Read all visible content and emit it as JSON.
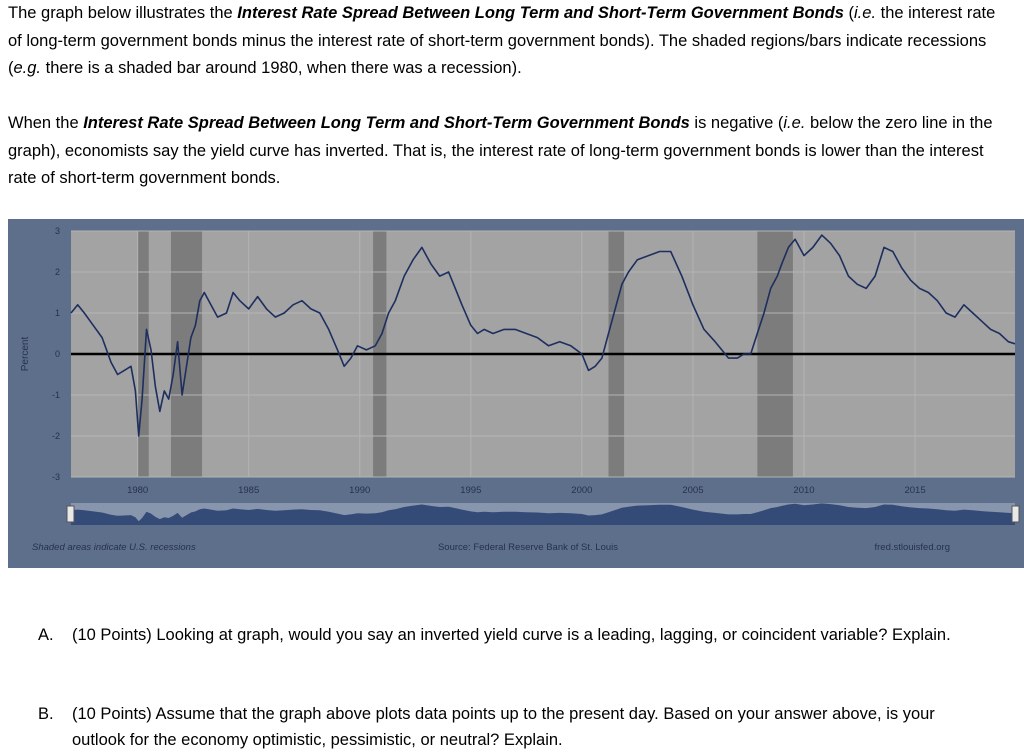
{
  "intro": {
    "p1_a": "The graph below illustrates the ",
    "p1_b": "Interest Rate Spread Between Long Term and Short-Term Government Bonds",
    "p1_c": " (",
    "p1_d": "i.e.",
    "p1_e": " the interest rate of long-term government bonds minus the interest rate of short-term government bonds).  The shaded regions/bars indicate recessions (",
    "p1_f": "e.g.",
    "p1_g": " there is a shaded bar around 1980, when there was a recession).",
    "p2_a": "When the ",
    "p2_b": "Interest Rate Spread Between Long Term and Short-Term Government Bonds",
    "p2_c": " is negative (",
    "p2_d": "i.e.",
    "p2_e": " below the zero line in the graph), economists say the yield curve has inverted. That is, the interest rate of long-term government bonds is lower than the interest rate of short-term government bonds."
  },
  "chart_data": {
    "type": "line",
    "ylabel": "Percent",
    "ylim": [
      -3,
      3
    ],
    "yticks": [
      "3",
      "2",
      "1",
      "0",
      "-1",
      "-2",
      "-3"
    ],
    "xlim": [
      1977.0,
      2019.5
    ],
    "xticks": [
      "1980",
      "1985",
      "1990",
      "1995",
      "2000",
      "2005",
      "2010",
      "2015"
    ],
    "recessions": [
      [
        1980.0,
        1980.5
      ],
      [
        1981.5,
        1982.9
      ],
      [
        1990.6,
        1991.2
      ],
      [
        2001.2,
        2001.9
      ],
      [
        2007.9,
        2009.5
      ]
    ],
    "series": [
      {
        "x": [
          1977.0,
          1977.3,
          1977.6,
          1978.0,
          1978.4,
          1978.8,
          1979.1,
          1979.4,
          1979.7,
          1979.9,
          1980.05,
          1980.2,
          1980.4,
          1980.6,
          1980.8,
          1981.0,
          1981.2,
          1981.4,
          1981.6,
          1981.8,
          1982.0,
          1982.2,
          1982.4,
          1982.6,
          1982.8,
          1983.0,
          1983.3,
          1983.6,
          1984.0,
          1984.3,
          1984.6,
          1985.0,
          1985.4,
          1985.8,
          1986.2,
          1986.6,
          1987.0,
          1987.4,
          1987.8,
          1988.2,
          1988.6,
          1989.0,
          1989.3,
          1989.6,
          1989.9,
          1990.3,
          1990.7,
          1991.0,
          1991.3,
          1991.6,
          1992.0,
          1992.4,
          1992.8,
          1993.2,
          1993.6,
          1994.0,
          1994.3,
          1994.6,
          1995.0,
          1995.3,
          1995.6,
          1996.0,
          1996.5,
          1997.0,
          1997.5,
          1998.0,
          1998.5,
          1999.0,
          1999.5,
          2000.0,
          2000.3,
          2000.6,
          2000.9,
          2001.2,
          2001.5,
          2001.8,
          2002.1,
          2002.5,
          2003.0,
          2003.5,
          2004.0,
          2004.5,
          2005.0,
          2005.5,
          2006.0,
          2006.3,
          2006.6,
          2007.0,
          2007.3,
          2007.6,
          2007.9,
          2008.2,
          2008.5,
          2008.8,
          2009.0,
          2009.3,
          2009.6,
          2010.0,
          2010.4,
          2010.8,
          2011.2,
          2011.6,
          2012.0,
          2012.4,
          2012.8,
          2013.2,
          2013.6,
          2014.0,
          2014.4,
          2014.8,
          2015.2,
          2015.6,
          2016.0,
          2016.4,
          2016.8,
          2017.2,
          2017.6,
          2018.0,
          2018.4,
          2018.8,
          2019.2,
          2019.5
        ],
        "values": [
          1.0,
          1.2,
          1.0,
          0.7,
          0.4,
          -0.2,
          -0.5,
          -0.4,
          -0.3,
          -0.9,
          -2.0,
          -1.1,
          0.6,
          0.1,
          -0.8,
          -1.4,
          -0.9,
          -1.1,
          -0.5,
          0.3,
          -1.0,
          -0.3,
          0.4,
          0.7,
          1.3,
          1.5,
          1.2,
          0.9,
          1.0,
          1.5,
          1.3,
          1.1,
          1.4,
          1.1,
          0.9,
          1.0,
          1.2,
          1.3,
          1.1,
          1.0,
          0.6,
          0.1,
          -0.3,
          -0.1,
          0.2,
          0.1,
          0.2,
          0.5,
          1.0,
          1.3,
          1.9,
          2.3,
          2.6,
          2.2,
          1.9,
          2.0,
          1.6,
          1.2,
          0.7,
          0.5,
          0.6,
          0.5,
          0.6,
          0.6,
          0.5,
          0.4,
          0.2,
          0.3,
          0.2,
          0.0,
          -0.4,
          -0.3,
          -0.1,
          0.5,
          1.1,
          1.7,
          2.0,
          2.3,
          2.4,
          2.5,
          2.5,
          1.9,
          1.2,
          0.6,
          0.3,
          0.1,
          -0.1,
          -0.1,
          0.0,
          0.0,
          0.5,
          1.0,
          1.6,
          1.9,
          2.2,
          2.6,
          2.8,
          2.4,
          2.6,
          2.9,
          2.7,
          2.4,
          1.9,
          1.7,
          1.6,
          1.9,
          2.6,
          2.5,
          2.1,
          1.8,
          1.6,
          1.5,
          1.3,
          1.0,
          0.9,
          1.2,
          1.0,
          0.8,
          0.6,
          0.5,
          0.3,
          0.25
        ]
      }
    ]
  },
  "chart_footer": {
    "left": "Shaded areas indicate U.S. recessions",
    "center": "Source: Federal Reserve Bank of St. Louis",
    "right": "fred.stlouisfed.org"
  },
  "questions": [
    {
      "letter": "A.",
      "text": "(10 Points) Looking at graph, would you say an inverted yield curve is a leading, lagging, or coincident variable? Explain."
    },
    {
      "letter": "B.",
      "text": "(10 Points) Assume that the graph above plots data points up to the present day.  Based on your answer above, is your outlook for the economy optimistic, pessimistic, or neutral?  Explain."
    }
  ],
  "colors": {
    "panel": "#5d6f8a",
    "plot_bg": "#a3a3a3",
    "recession": "#7c7c7c",
    "line": "#1e2f5f",
    "zero_line": "#000000",
    "axis_text": "#25324e"
  }
}
